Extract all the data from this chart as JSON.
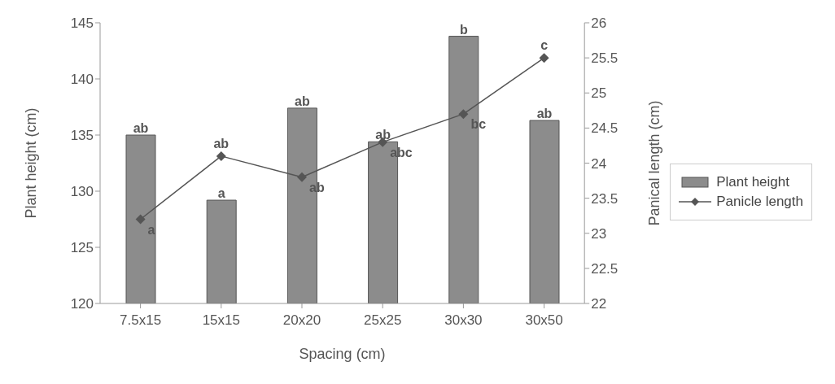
{
  "chart_data": {
    "type": "bar",
    "xlabel": "Spacing (cm)",
    "ylabel": "Plant height (cm)",
    "y2label": "Panical length (cm)",
    "categories": [
      "7.5x15",
      "15x15",
      "20x20",
      "25x25",
      "30x30",
      "30x50"
    ],
    "series": [
      {
        "name": "Plant height",
        "color": "#8c8c8c",
        "values": [
          135.0,
          129.2,
          137.4,
          134.4,
          143.8,
          136.3
        ],
        "value_labels": [
          "ab",
          "a",
          "ab",
          "ab",
          "b",
          "ab"
        ]
      },
      {
        "name": "Panicle length",
        "type": "line",
        "axis": "y2",
        "color": "#555555",
        "values": [
          23.2,
          24.1,
          23.8,
          24.3,
          24.7,
          25.5
        ],
        "value_labels": [
          "a",
          "ab",
          "ab",
          "abc",
          "bc",
          "c"
        ]
      }
    ],
    "ylim": [
      120,
      145
    ],
    "yticks": [
      120,
      125,
      130,
      135,
      140,
      145
    ],
    "y2lim": [
      22,
      26
    ],
    "y2ticks": [
      22,
      22.5,
      23,
      23.5,
      24,
      24.5,
      25,
      25.5,
      26
    ],
    "marker": "diamond",
    "grid": false,
    "legend": "right"
  }
}
